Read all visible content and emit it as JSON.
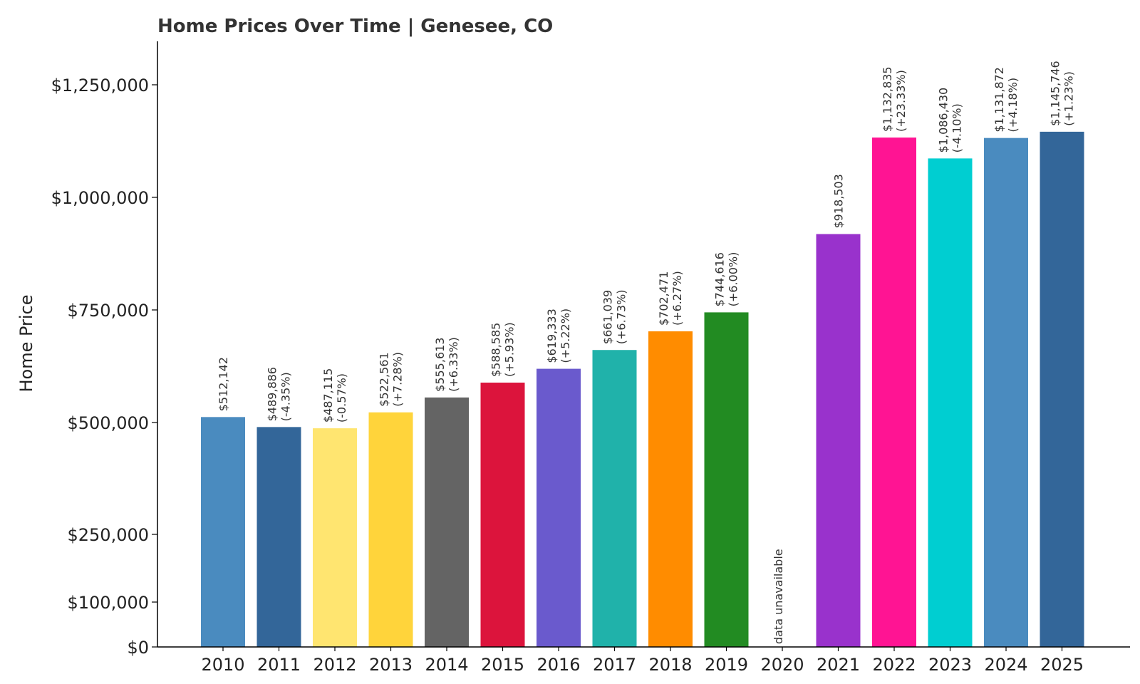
{
  "chart_data": {
    "type": "bar",
    "title": "Home Prices Over Time | Genesee, CO",
    "xlabel": "",
    "ylabel": "Home Price",
    "ylim": [
      0,
      1350000
    ],
    "yticks": [
      0,
      100000,
      250000,
      500000,
      750000,
      1000000,
      1250000
    ],
    "ytick_labels": [
      "$0",
      "$100,000",
      "$250,000",
      "$500,000",
      "$750,000",
      "$1,000,000",
      "$1,250,000"
    ],
    "categories": [
      "2010",
      "2011",
      "2012",
      "2013",
      "2014",
      "2015",
      "2016",
      "2017",
      "2018",
      "2019",
      "2020",
      "2021",
      "2022",
      "2023",
      "2024",
      "2025"
    ],
    "values": [
      512142,
      489886,
      487115,
      522561,
      555613,
      588585,
      619333,
      661039,
      702471,
      744616,
      null,
      918503,
      1132835,
      1086430,
      1131872,
      1145746
    ],
    "value_labels": [
      "$512,142",
      "$489,886",
      "$487,115",
      "$522,561",
      "$555,613",
      "$588,585",
      "$619,333",
      "$661,039",
      "$702,471",
      "$744,616",
      "data unavailable",
      "$918,503",
      "$1,132,835",
      "$1,086,430",
      "$1,131,872",
      "$1,145,746"
    ],
    "change_labels": [
      "",
      "(-4.35%)",
      "(-0.57%)",
      "(+7.28%)",
      "(+6.33%)",
      "(+5.93%)",
      "(+5.22%)",
      "(+6.73%)",
      "(+6.27%)",
      "(+6.00%)",
      "",
      "",
      "(+23.33%)",
      "(-4.10%)",
      "(+4.18%)",
      "(+1.23%)"
    ],
    "colors": [
      "#4a8bbf",
      "#336699",
      "#ffe570",
      "#ffd43b",
      "#646464",
      "#dc143c",
      "#6a5acd",
      "#20b2aa",
      "#ff8c00",
      "#228b22",
      "#ffffff",
      "#9932cc",
      "#ff1493",
      "#00ced1",
      "#4a8bbf",
      "#336699"
    ],
    "grid": false,
    "legend": "none"
  }
}
